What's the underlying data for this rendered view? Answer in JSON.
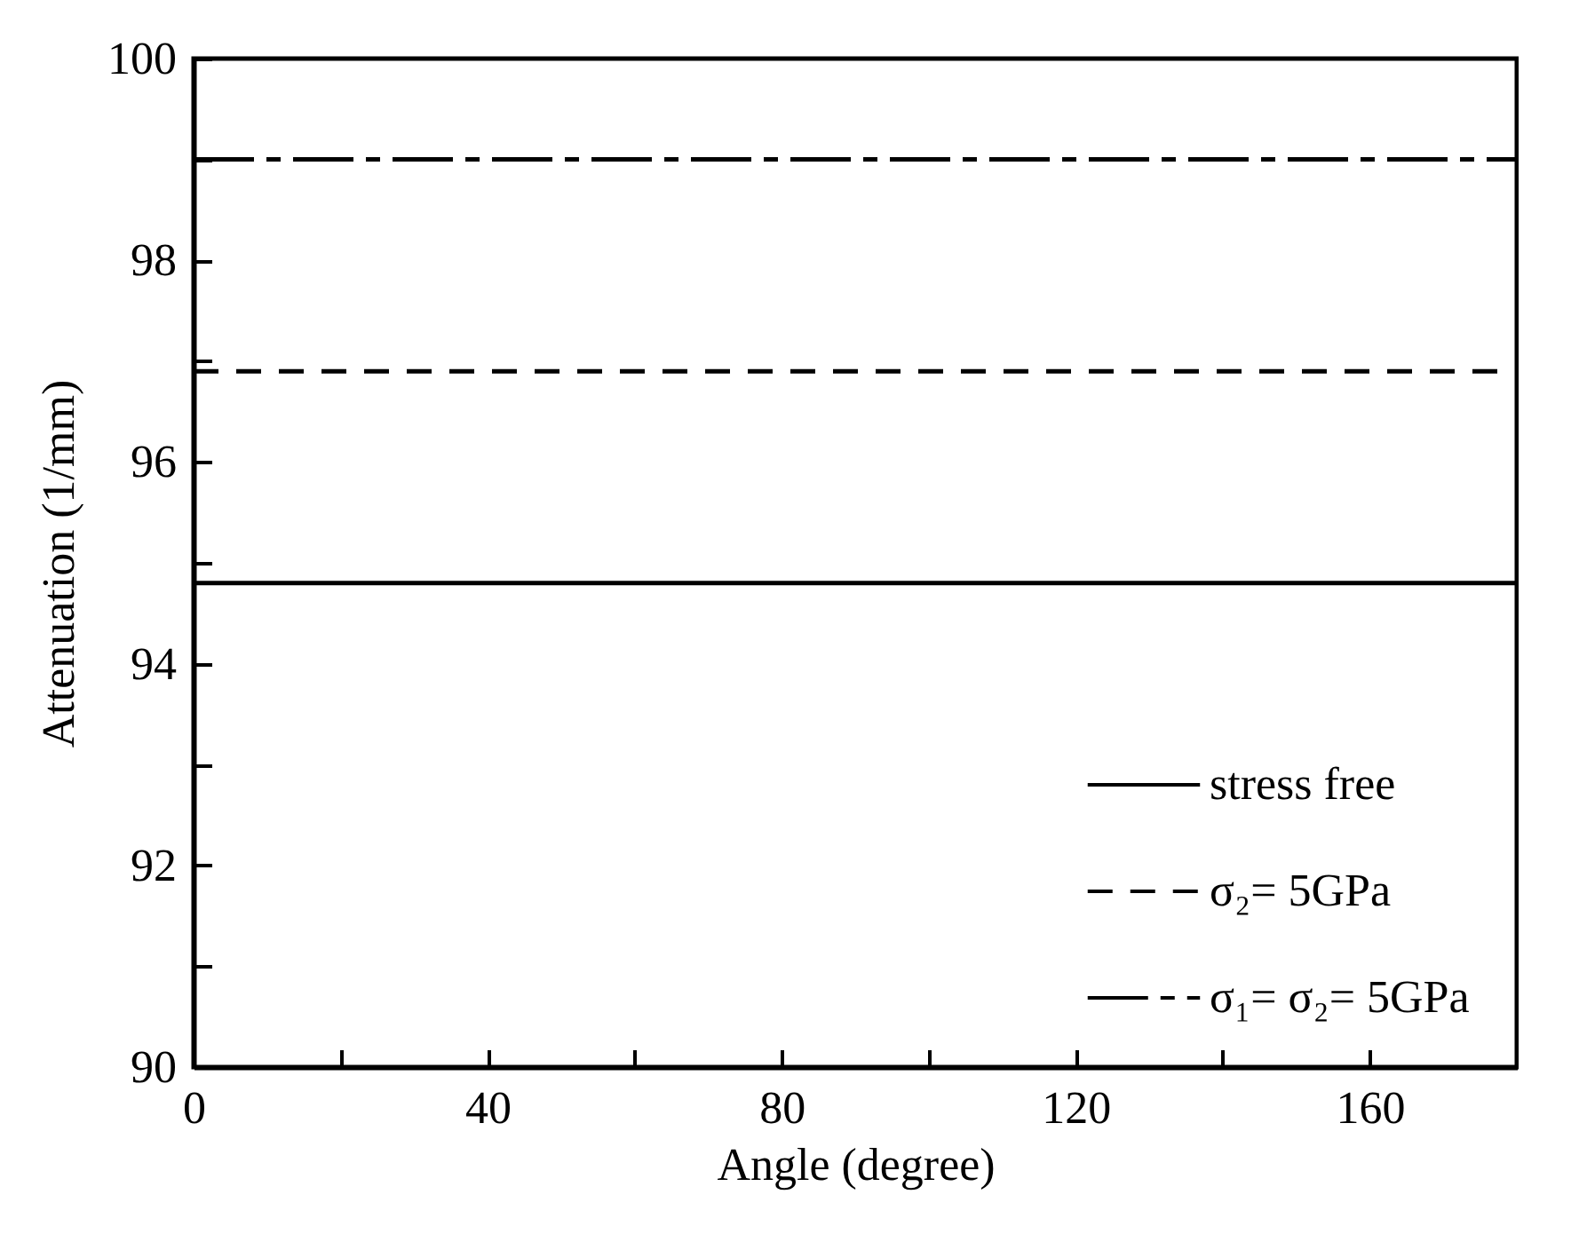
{
  "chart_data": {
    "type": "line",
    "xlabel": "Angle (degree)",
    "ylabel": "Attenuation (1/mm)",
    "x": [
      0,
      180
    ],
    "series": [
      {
        "name": "stress free",
        "color": "#000000",
        "line_style": "solid",
        "values": [
          94.8,
          94.8
        ]
      },
      {
        "name": "σ₂= 5GPa",
        "color": "#000000",
        "line_style": "dashed",
        "values": [
          96.9,
          96.9
        ]
      },
      {
        "name": "σ₁= σ₂= 5GPa",
        "color": "#000000",
        "line_style": "dashdot",
        "values": [
          99.0,
          99.0
        ]
      }
    ],
    "xlim": [
      0,
      180
    ],
    "xticks": [
      0,
      {
        "value": 20,
        "label": null
      },
      40,
      {
        "value": 60,
        "label": null
      },
      80,
      {
        "value": 100,
        "label": null
      },
      120,
      {
        "value": 140,
        "label": null
      },
      160,
      {
        "value": 180,
        "label": null
      }
    ],
    "ylim": [
      90,
      100
    ],
    "yticks": [
      90,
      {
        "value": 91,
        "label": null
      },
      92,
      {
        "value": 93,
        "label": null
      },
      94,
      {
        "value": 95,
        "label": null
      },
      96,
      {
        "value": 97,
        "label": null
      },
      98,
      {
        "value": 99,
        "label": null
      },
      100
    ],
    "legend": "bottom right"
  }
}
